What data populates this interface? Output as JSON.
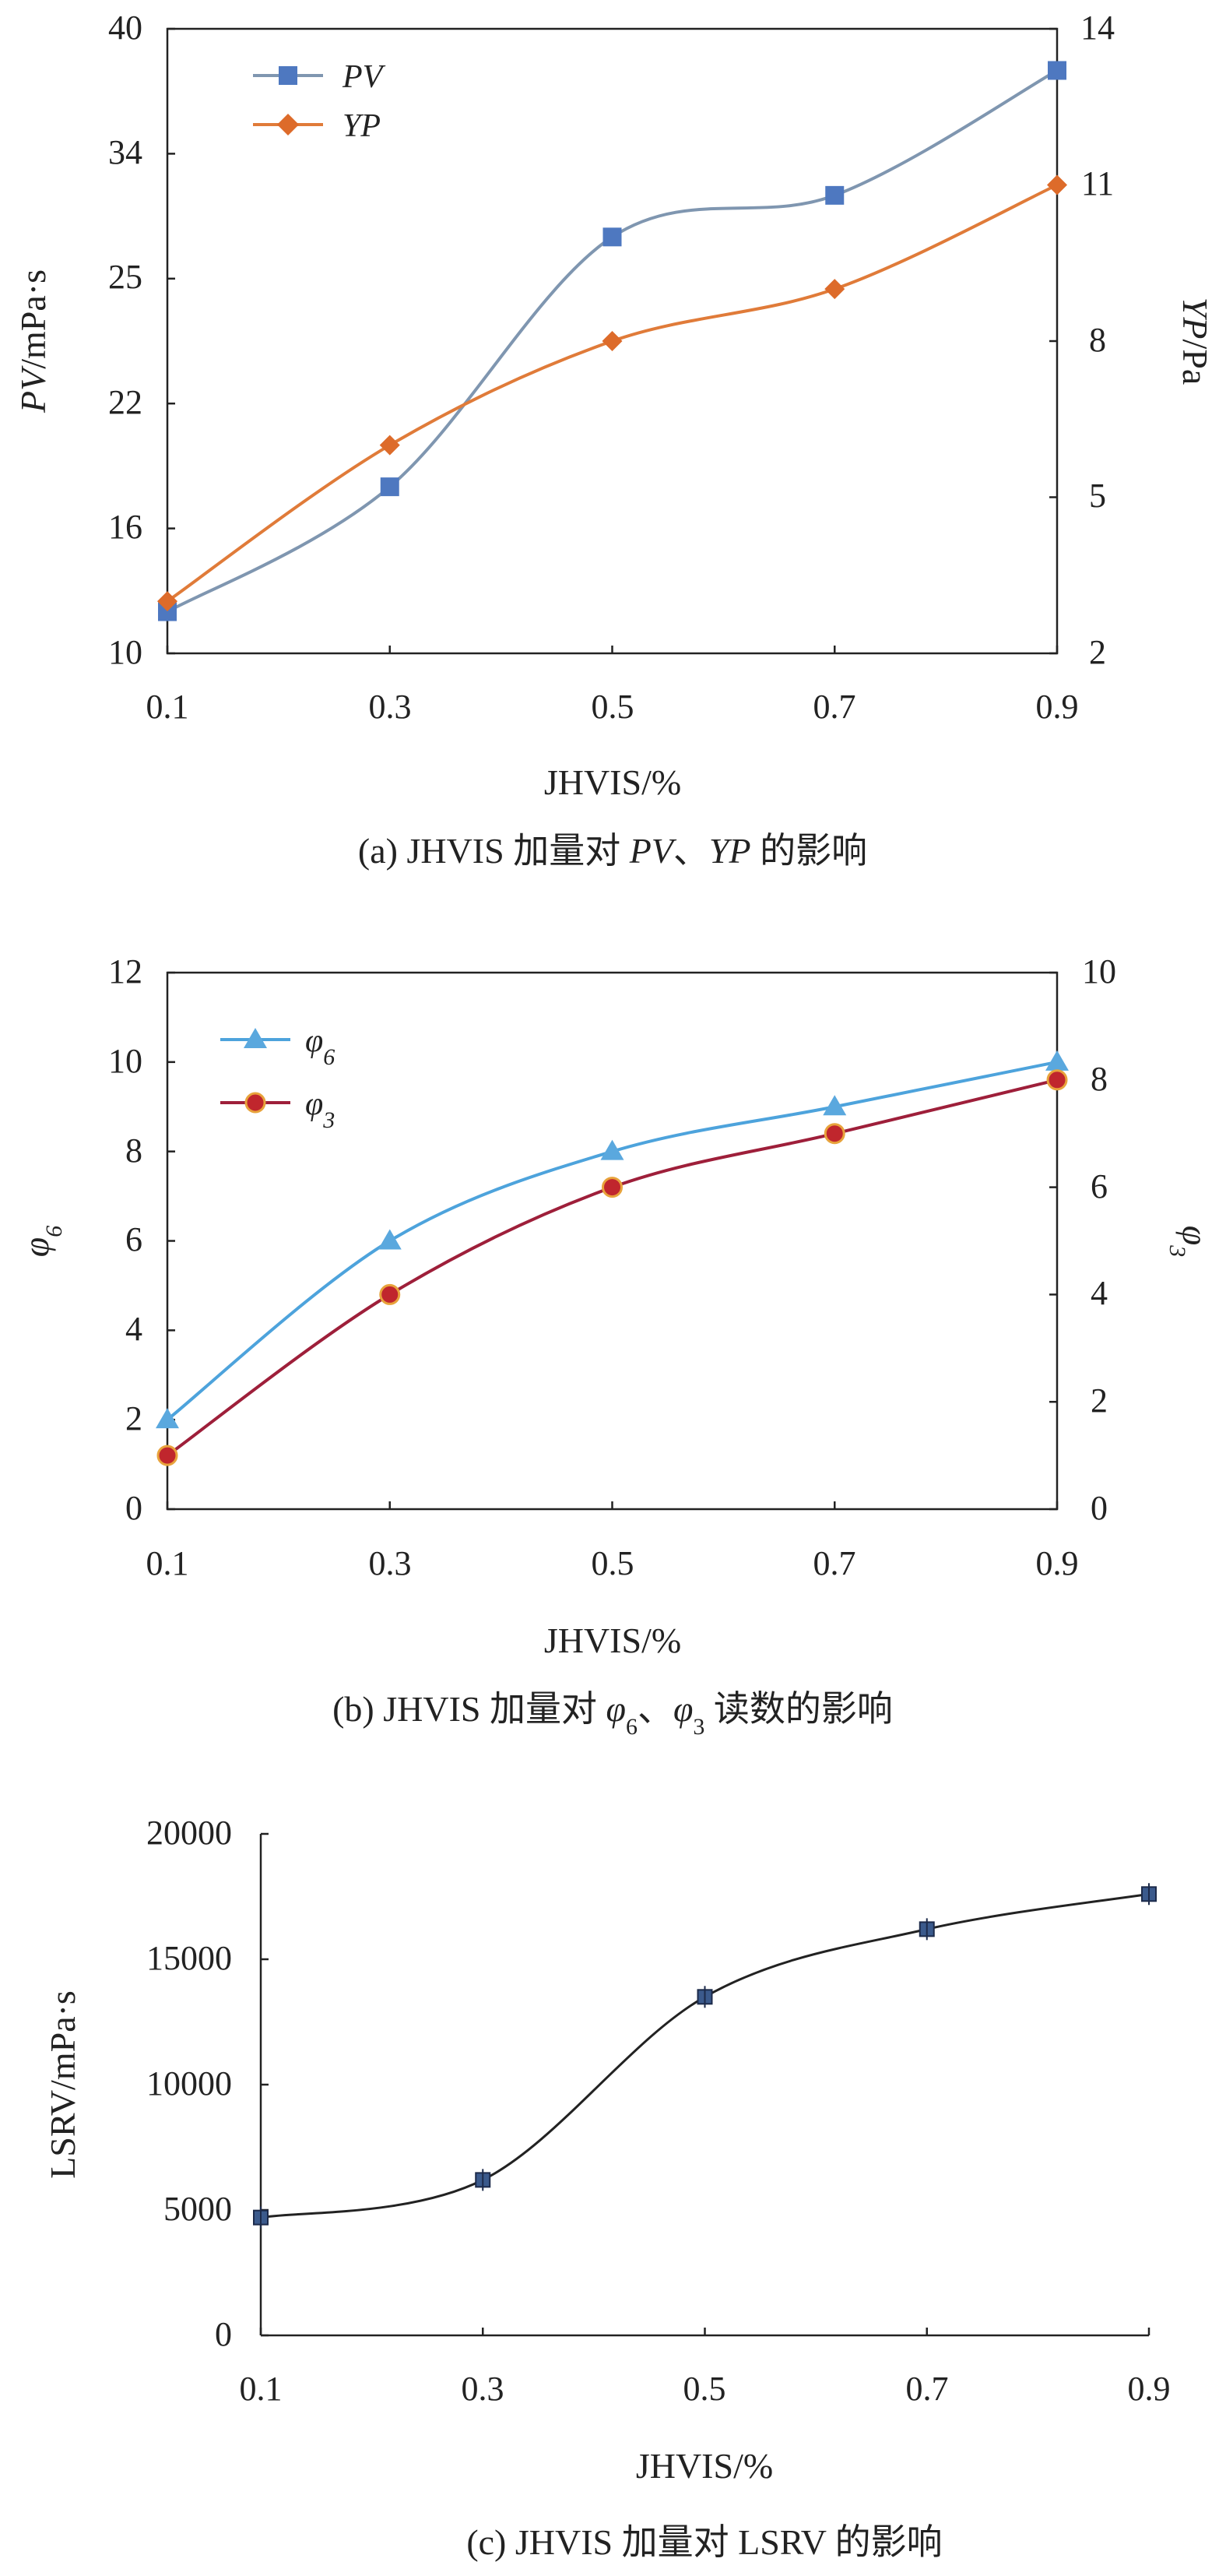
{
  "chart_data": [
    {
      "type": "line",
      "caption": "(a) JHVIS 加量对 PV、YP 的影响",
      "x": [
        0.1,
        0.3,
        0.5,
        0.7,
        0.9
      ],
      "xtick_labels": [
        "0.1",
        "0.3",
        "0.5",
        "0.7",
        "0.9"
      ],
      "xlim": [
        0.1,
        0.9
      ],
      "xlabel": "JHVIS/%",
      "ylabel_left": "PV/mPa·s",
      "ylabel_right": "YP/Pa",
      "ytick_labels_left": [
        "10",
        "16",
        "22",
        "25",
        "34",
        "40"
      ],
      "ytick_labels_right": [
        "2",
        "5",
        "8",
        "11",
        "14"
      ],
      "legend_position": "top-left",
      "grid": false,
      "series": [
        {
          "name": "PV",
          "axis": "left",
          "marker": "square",
          "color": "#7f96b0",
          "marker_color": "#4e78c0",
          "values": [
            12,
            18,
            28,
            31,
            38
          ]
        },
        {
          "name": "YP",
          "axis": "right",
          "marker": "diamond",
          "color": "#e07b39",
          "marker_color": "#dd6b2a",
          "values": [
            3,
            6,
            8,
            9,
            11
          ]
        }
      ]
    },
    {
      "type": "line",
      "caption": "(b) JHVIS 加量对 φ6、φ3 读数的影响",
      "x": [
        0.1,
        0.3,
        0.5,
        0.7,
        0.9
      ],
      "xtick_labels": [
        "0.1",
        "0.3",
        "0.5",
        "0.7",
        "0.9"
      ],
      "xlim": [
        0.1,
        0.9
      ],
      "xlabel": "JHVIS/%",
      "ylabel_left": "φ6",
      "ylabel_right": "φ3",
      "ylim_left": [
        0,
        12
      ],
      "ylim_right": [
        0,
        10
      ],
      "ytick_labels_left": [
        "0",
        "2",
        "4",
        "6",
        "8",
        "10",
        "12"
      ],
      "ytick_labels_right": [
        "0",
        "2",
        "4",
        "6",
        "8",
        "10"
      ],
      "legend_position": "top-left",
      "grid": false,
      "series": [
        {
          "name": "φ6",
          "axis": "left",
          "marker": "triangle",
          "color": "#4da3dc",
          "marker_color": "#5aa8de",
          "values": [
            2,
            6,
            8,
            9,
            10
          ]
        },
        {
          "name": "φ3",
          "axis": "right",
          "marker": "circle",
          "color": "#9e1f3a",
          "marker_color": "#c0262d",
          "values": [
            1,
            4,
            6,
            7,
            8
          ]
        }
      ]
    },
    {
      "type": "line",
      "caption": "(c) JHVIS 加量对 LSRV 的影响",
      "x": [
        0.1,
        0.3,
        0.5,
        0.7,
        0.9
      ],
      "xtick_labels": [
        "0.1",
        "0.3",
        "0.5",
        "0.7",
        "0.9"
      ],
      "xlim": [
        0.1,
        0.9
      ],
      "xlabel": "JHVIS/%",
      "ylabel": "LSRV/mPa·s",
      "ylim": [
        0,
        20000
      ],
      "ytick_labels": [
        "0",
        "5000",
        "10000",
        "15000",
        "20000"
      ],
      "grid": false,
      "series": [
        {
          "name": "LSRV",
          "axis": "left",
          "marker": "square",
          "color": "#222222",
          "marker_color": "#3b5a8c",
          "values": [
            4700,
            6200,
            13500,
            16200,
            17600
          ]
        }
      ]
    }
  ]
}
